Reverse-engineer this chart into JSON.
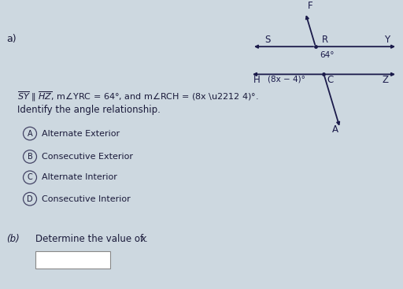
{
  "bg_color": "#cdd8e0",
  "text_area_bg": "#c8d5dd",
  "title_label": "a)",
  "diagram": {
    "color": "#1a1a4a",
    "lw": 1.3
  },
  "given_line1": "̅SY ‖ ̅HZ, m∠YRC = 64°, and m∠RCH = (8x − 4)°.",
  "identify_text": "Identify the angle relationship.",
  "options": [
    {
      "label": "A",
      "text": "Alternate Exterior"
    },
    {
      "label": "B",
      "text": "Consecutive Exterior"
    },
    {
      "label": "C",
      "text": "Alternate Interior"
    },
    {
      "label": "D",
      "text": "Consecutive Interior"
    }
  ],
  "part_b_label": "(b)",
  "part_b_text": "Determine the value of ",
  "text_color": "#1a1a3a",
  "circle_color": "#444466"
}
